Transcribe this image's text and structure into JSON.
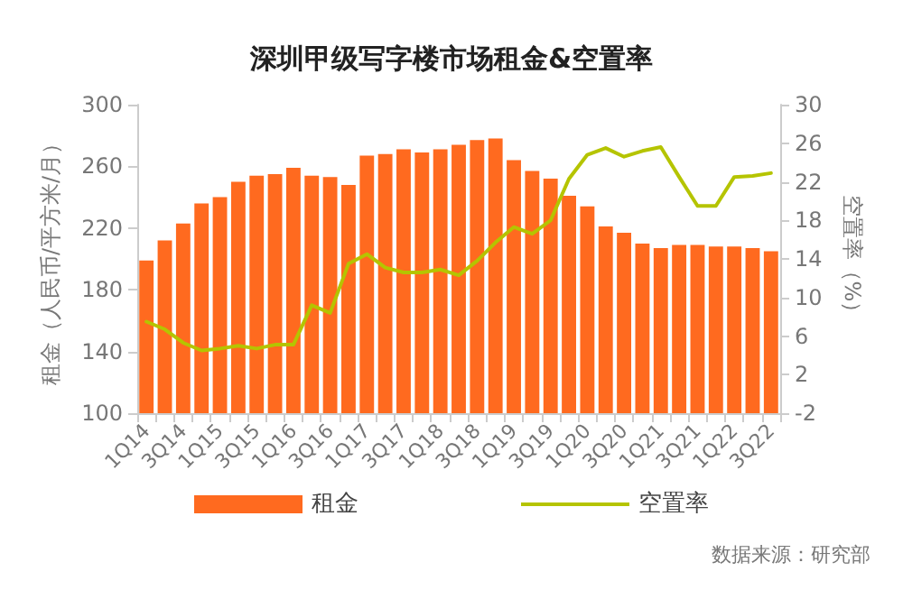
{
  "chart_data": {
    "type": "bar",
    "title": "深圳甲级写字楼市场租金&空置率",
    "ylabel": "租金（人民币/平方米/月）",
    "y2label": "空置率（%）",
    "categories": [
      "1Q14",
      null,
      "3Q14",
      null,
      "1Q15",
      null,
      "3Q15",
      null,
      "1Q16",
      null,
      "3Q16",
      null,
      "1Q17",
      null,
      "3Q17",
      null,
      "1Q18",
      null,
      "3Q18",
      null,
      "1Q19",
      null,
      "3Q19",
      null,
      "1Q20",
      null,
      "3Q20",
      null,
      "1Q21",
      null,
      "3Q21",
      null,
      "1Q22",
      null,
      "3Q22"
    ],
    "series": [
      {
        "name": "租金",
        "color": "#ff6a1f",
        "values": [
          199,
          212,
          223,
          236,
          240,
          250,
          254,
          255,
          259,
          254,
          253,
          248,
          267,
          268,
          271,
          269,
          271,
          274,
          277,
          278,
          264,
          257,
          252,
          241,
          234,
          221,
          217,
          210,
          207,
          209,
          209,
          208,
          208,
          207,
          205
        ]
      },
      {
        "name": "空置率",
        "type": "line",
        "axis": "y2",
        "color": "#b5c400",
        "values": [
          7.5,
          6.7,
          5.3,
          4.5,
          4.7,
          5.0,
          4.7,
          5.1,
          5.1,
          9.2,
          8.4,
          13.5,
          14.5,
          13.1,
          12.6,
          12.6,
          12.9,
          12.3,
          13.8,
          15.7,
          17.3,
          16.6,
          18.0,
          22.3,
          24.8,
          25.5,
          24.6,
          25.2,
          25.6,
          22.5,
          19.5,
          19.5,
          22.5,
          22.6,
          22.9
        ]
      }
    ],
    "ylim": [
      100,
      300
    ],
    "yticks": [
      100,
      140,
      180,
      220,
      260,
      300
    ],
    "y2lim": [
      -2,
      30
    ],
    "y2ticks": [
      -2,
      2,
      6,
      10,
      14,
      18,
      22,
      26,
      30
    ],
    "grid": false,
    "legend": "bottom",
    "marker": "none",
    "line_style": "solid",
    "annotations": [
      "数据来源：研究部"
    ]
  }
}
